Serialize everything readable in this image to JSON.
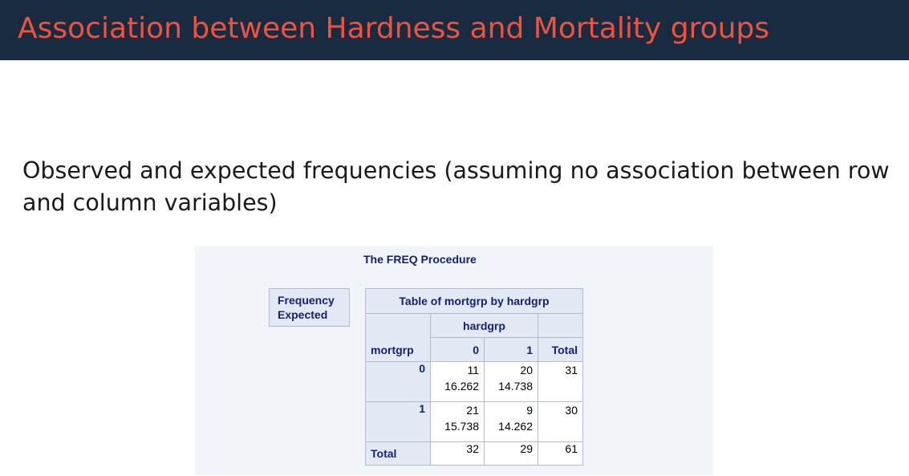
{
  "slide": {
    "title": "Association between Hardness and Mortality groups",
    "body": "Observed and expected frequencies (assuming no association between row and column variables)"
  },
  "sas": {
    "procedure_title": "The FREQ Procedure",
    "legend": [
      "Frequency",
      "Expected"
    ],
    "table_title": "Table of mortgrp by hardgrp",
    "column_variable": "hardgrp",
    "row_variable": "mortgrp",
    "column_headers": [
      "0",
      "1",
      "Total"
    ],
    "rows": [
      {
        "label": "0",
        "cells": [
          {
            "frequency": "11",
            "expected": "16.262"
          },
          {
            "frequency": "20",
            "expected": "14.738"
          }
        ],
        "total": "31"
      },
      {
        "label": "1",
        "cells": [
          {
            "frequency": "21",
            "expected": "15.738"
          },
          {
            "frequency": "9",
            "expected": "14.262"
          }
        ],
        "total": "30"
      }
    ],
    "total_row": {
      "label": "Total",
      "values": [
        "32",
        "29",
        "61"
      ]
    }
  }
}
